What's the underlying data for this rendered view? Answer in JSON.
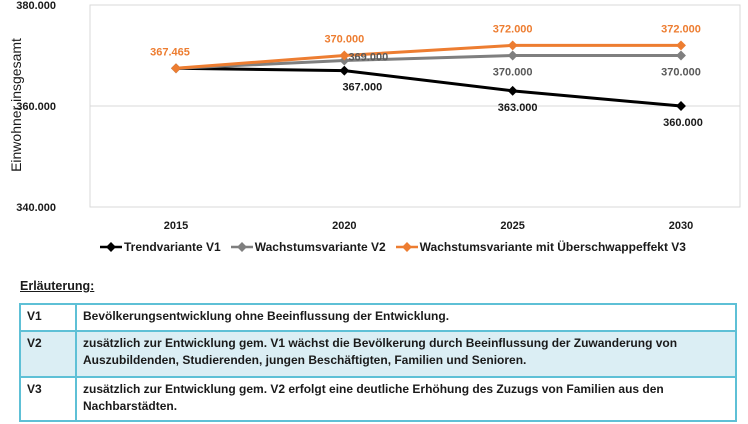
{
  "chart_data": {
    "type": "line",
    "ylabel": "Einwohner insgesamt",
    "xlabel": "",
    "categories": [
      "2015",
      "2020",
      "2025",
      "2030"
    ],
    "ylim": [
      340000,
      380000
    ],
    "yticks": [
      340000,
      360000,
      380000
    ],
    "ytick_labels": [
      "340.000",
      "360.000",
      "380.000"
    ],
    "grid": "horizontal",
    "legend_position": "bottom",
    "series": [
      {
        "name": "Trendvariante V1",
        "color": "#000000",
        "values": [
          367465,
          367000,
          363000,
          360000
        ],
        "labels": [
          "",
          "367.000",
          "363.000",
          "360.000"
        ]
      },
      {
        "name": "Wachstumsvariante V2",
        "color": "#7f7f7f",
        "values": [
          367465,
          369000,
          370000,
          370000
        ],
        "labels": [
          "",
          "369.000",
          "370.000",
          "370.000"
        ]
      },
      {
        "name": "Wachstumsvariante mit Überschwappeffekt V3",
        "color": "#ed7d31",
        "values": [
          367465,
          370000,
          372000,
          372000
        ],
        "labels": [
          "367.465",
          "370.000",
          "372.000",
          "372.000"
        ]
      }
    ]
  },
  "erlaeuterung": {
    "title": "Erläuterung:",
    "rows": [
      {
        "code": "V1",
        "text": "Bevölkerungsentwicklung ohne Beeinflussung der Entwicklung."
      },
      {
        "code": "V2",
        "text": "zusätzlich zur Entwicklung gem. V1 wächst die Bevölkerung durch Beeinflussung der Zuwanderung von Auszubildenden, Studierenden, jungen Beschäftigten, Familien und Senioren."
      },
      {
        "code": "V3",
        "text": "zusätzlich zur Entwicklung gem. V2 erfolgt eine deutliche Erhöhung des Zuzugs von Familien aus den Nachbarstädten."
      }
    ]
  }
}
